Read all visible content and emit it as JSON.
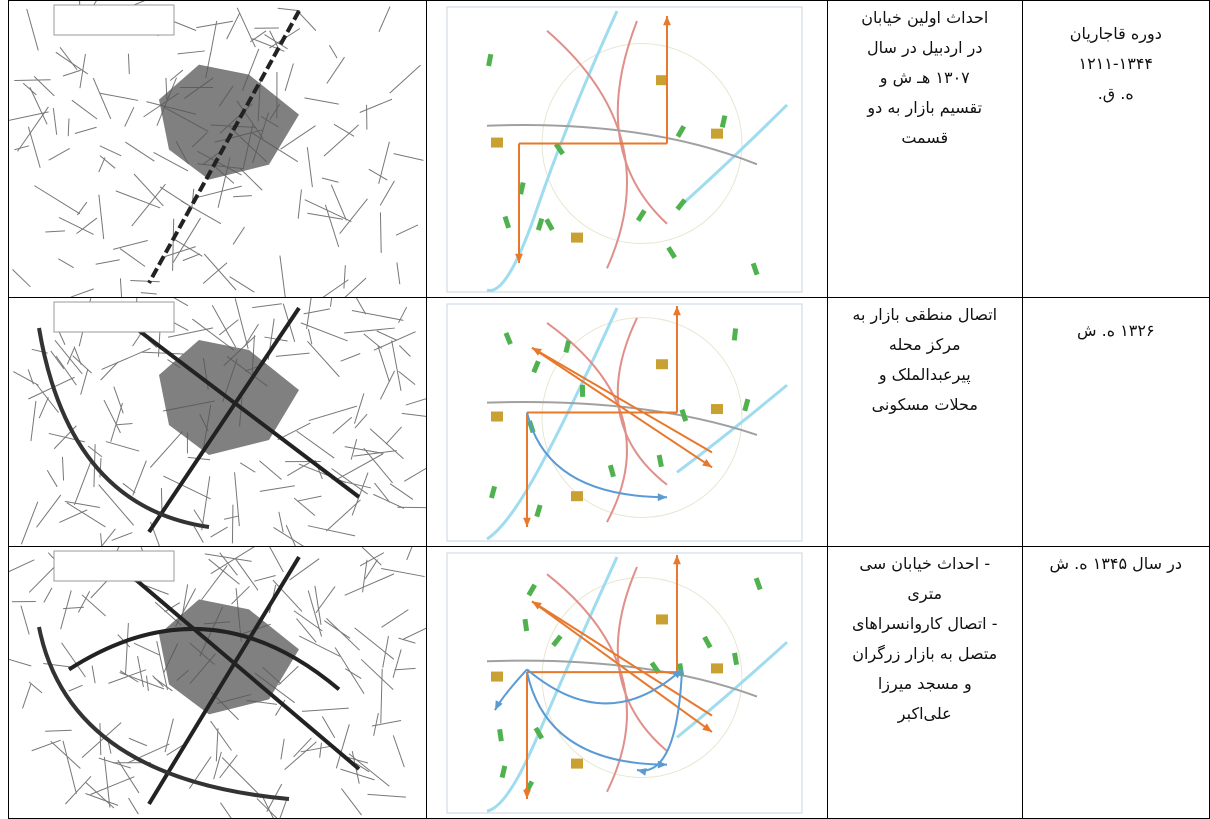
{
  "table": {
    "rows": [
      {
        "period": [
          "دوره قاجاریان",
          "۱۲۱۱-۱۳۴۴",
          "ه. ق."
        ],
        "description": [
          "احداث اولین خیابان",
          "در اردبیل در سال",
          "۱۳۰۷ هـ ش و",
          "تقسیم بازار به دو",
          "قسمت"
        ]
      },
      {
        "period": [
          "۱۳۲۶ ه. ش"
        ],
        "description": [
          "اتصال منطقی بازار به",
          "مرکز محله",
          "پیرعبدالملک و",
          "محلات مسکونی"
        ]
      },
      {
        "period": [
          "در سال ۱۳۴۵ ه. ش"
        ],
        "description": [
          "- احداث خیابان سی",
          "متری",
          "- اتصال کاروانسراهای",
          "متصل به بازار زرگران",
          "و مسجد میرزا",
          "علی‌اکبر"
        ]
      }
    ]
  }
}
